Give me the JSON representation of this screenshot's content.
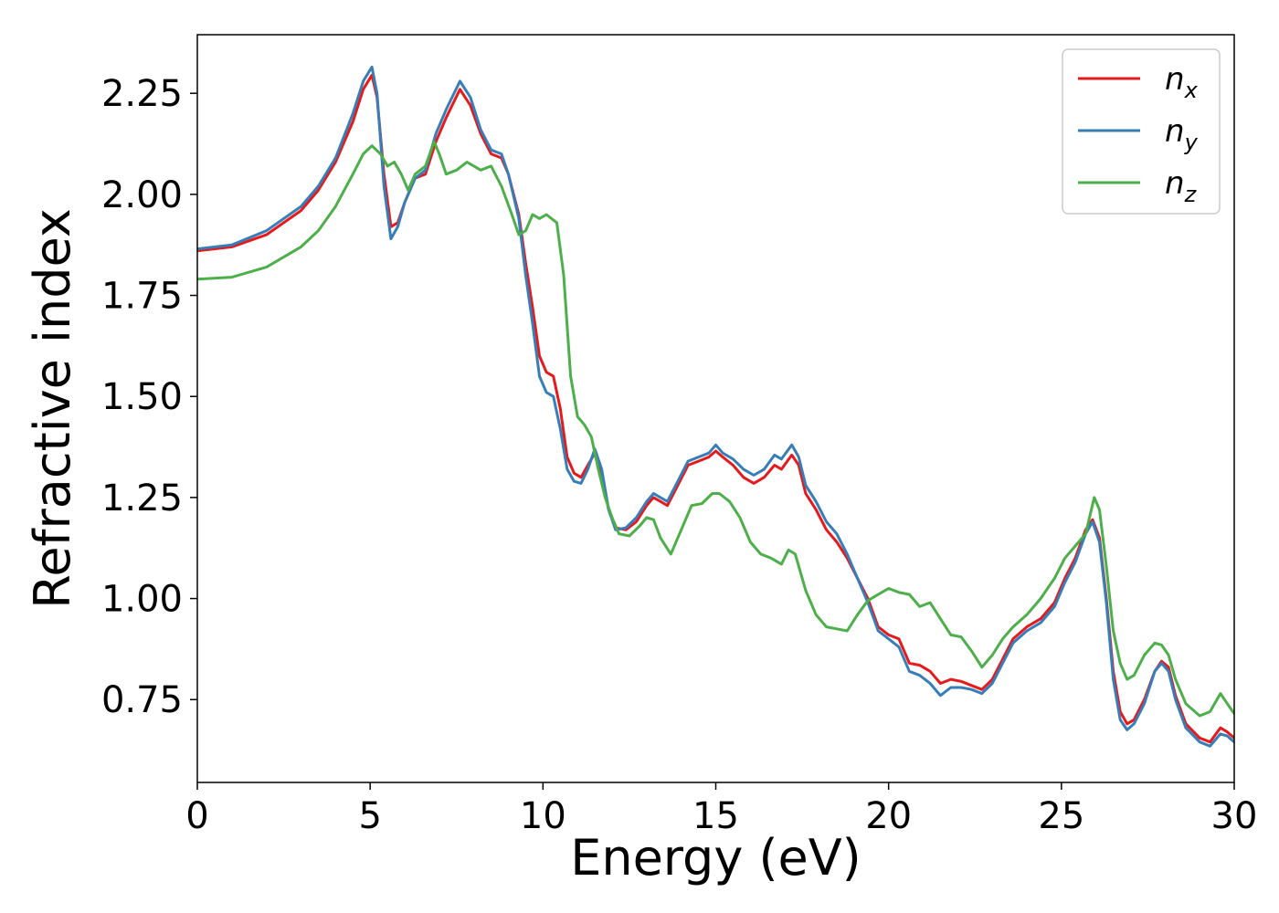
{
  "chart_data": {
    "type": "line",
    "xlabel": "Energy (eV)",
    "ylabel": "Refractive index",
    "xlim": [
      0,
      30
    ],
    "ylim": [
      0.545,
      2.395
    ],
    "xticks": [
      0,
      5,
      10,
      15,
      20,
      25,
      30
    ],
    "xtick_labels": [
      "0",
      "5",
      "10",
      "15",
      "20",
      "25",
      "30"
    ],
    "yticks": [
      0.75,
      1.0,
      1.25,
      1.5,
      1.75,
      2.0,
      2.25
    ],
    "ytick_labels": [
      "0.75",
      "1.00",
      "1.25",
      "1.50",
      "1.75",
      "2.00",
      "2.25"
    ],
    "grid": false,
    "legend_position": "top-right",
    "series": [
      {
        "name": "n",
        "subscript": "x",
        "color": "#e41a1c",
        "points": [
          [
            0,
            1.86
          ],
          [
            1,
            1.87
          ],
          [
            2,
            1.9
          ],
          [
            3,
            1.96
          ],
          [
            3.5,
            2.01
          ],
          [
            4,
            2.08
          ],
          [
            4.5,
            2.18
          ],
          [
            4.8,
            2.26
          ],
          [
            5.05,
            2.295
          ],
          [
            5.2,
            2.24
          ],
          [
            5.4,
            2.05
          ],
          [
            5.6,
            1.92
          ],
          [
            5.8,
            1.93
          ],
          [
            6.0,
            1.98
          ],
          [
            6.3,
            2.04
          ],
          [
            6.6,
            2.05
          ],
          [
            6.9,
            2.13
          ],
          [
            7.2,
            2.19
          ],
          [
            7.6,
            2.26
          ],
          [
            7.9,
            2.22
          ],
          [
            8.2,
            2.15
          ],
          [
            8.5,
            2.1
          ],
          [
            8.8,
            2.09
          ],
          [
            9.0,
            2.05
          ],
          [
            9.3,
            1.95
          ],
          [
            9.5,
            1.83
          ],
          [
            9.7,
            1.72
          ],
          [
            9.9,
            1.6
          ],
          [
            10.1,
            1.56
          ],
          [
            10.3,
            1.55
          ],
          [
            10.5,
            1.47
          ],
          [
            10.7,
            1.35
          ],
          [
            10.9,
            1.31
          ],
          [
            11.1,
            1.3
          ],
          [
            11.3,
            1.33
          ],
          [
            11.5,
            1.36
          ],
          [
            11.7,
            1.31
          ],
          [
            11.9,
            1.22
          ],
          [
            12.1,
            1.175
          ],
          [
            12.4,
            1.17
          ],
          [
            12.7,
            1.19
          ],
          [
            13.0,
            1.23
          ],
          [
            13.2,
            1.25
          ],
          [
            13.4,
            1.24
          ],
          [
            13.6,
            1.23
          ],
          [
            13.9,
            1.28
          ],
          [
            14.2,
            1.33
          ],
          [
            14.5,
            1.34
          ],
          [
            14.8,
            1.35
          ],
          [
            15.0,
            1.365
          ],
          [
            15.2,
            1.35
          ],
          [
            15.5,
            1.33
          ],
          [
            15.8,
            1.3
          ],
          [
            16.1,
            1.285
          ],
          [
            16.4,
            1.3
          ],
          [
            16.7,
            1.33
          ],
          [
            16.9,
            1.32
          ],
          [
            17.2,
            1.355
          ],
          [
            17.4,
            1.33
          ],
          [
            17.6,
            1.26
          ],
          [
            17.9,
            1.22
          ],
          [
            18.2,
            1.17
          ],
          [
            18.5,
            1.14
          ],
          [
            18.8,
            1.1
          ],
          [
            19.1,
            1.05
          ],
          [
            19.4,
            1.0
          ],
          [
            19.7,
            0.93
          ],
          [
            20.0,
            0.91
          ],
          [
            20.3,
            0.9
          ],
          [
            20.6,
            0.84
          ],
          [
            20.9,
            0.835
          ],
          [
            21.2,
            0.82
          ],
          [
            21.5,
            0.79
          ],
          [
            21.8,
            0.8
          ],
          [
            22.1,
            0.795
          ],
          [
            22.4,
            0.785
          ],
          [
            22.7,
            0.775
          ],
          [
            23.0,
            0.8
          ],
          [
            23.3,
            0.85
          ],
          [
            23.6,
            0.9
          ],
          [
            24.0,
            0.93
          ],
          [
            24.4,
            0.95
          ],
          [
            24.8,
            0.99
          ],
          [
            25.1,
            1.05
          ],
          [
            25.4,
            1.1
          ],
          [
            25.7,
            1.17
          ],
          [
            25.9,
            1.195
          ],
          [
            26.1,
            1.15
          ],
          [
            26.3,
            1.0
          ],
          [
            26.5,
            0.82
          ],
          [
            26.7,
            0.72
          ],
          [
            26.9,
            0.69
          ],
          [
            27.1,
            0.7
          ],
          [
            27.4,
            0.75
          ],
          [
            27.7,
            0.82
          ],
          [
            27.9,
            0.845
          ],
          [
            28.1,
            0.83
          ],
          [
            28.3,
            0.76
          ],
          [
            28.6,
            0.69
          ],
          [
            29.0,
            0.655
          ],
          [
            29.3,
            0.645
          ],
          [
            29.6,
            0.68
          ],
          [
            29.8,
            0.67
          ],
          [
            30.0,
            0.655
          ]
        ]
      },
      {
        "name": "n",
        "subscript": "y",
        "color": "#377eb8",
        "points": [
          [
            0,
            1.865
          ],
          [
            1,
            1.875
          ],
          [
            2,
            1.91
          ],
          [
            3,
            1.97
          ],
          [
            3.5,
            2.02
          ],
          [
            4,
            2.09
          ],
          [
            4.5,
            2.2
          ],
          [
            4.8,
            2.28
          ],
          [
            5.05,
            2.315
          ],
          [
            5.2,
            2.25
          ],
          [
            5.4,
            2.02
          ],
          [
            5.6,
            1.89
          ],
          [
            5.8,
            1.92
          ],
          [
            6.0,
            1.98
          ],
          [
            6.3,
            2.04
          ],
          [
            6.6,
            2.06
          ],
          [
            6.9,
            2.15
          ],
          [
            7.2,
            2.21
          ],
          [
            7.6,
            2.28
          ],
          [
            7.9,
            2.24
          ],
          [
            8.2,
            2.16
          ],
          [
            8.5,
            2.11
          ],
          [
            8.8,
            2.1
          ],
          [
            9.0,
            2.05
          ],
          [
            9.3,
            1.94
          ],
          [
            9.5,
            1.8
          ],
          [
            9.7,
            1.68
          ],
          [
            9.9,
            1.55
          ],
          [
            10.1,
            1.51
          ],
          [
            10.3,
            1.5
          ],
          [
            10.5,
            1.42
          ],
          [
            10.7,
            1.32
          ],
          [
            10.9,
            1.29
          ],
          [
            11.1,
            1.285
          ],
          [
            11.3,
            1.32
          ],
          [
            11.5,
            1.37
          ],
          [
            11.7,
            1.32
          ],
          [
            11.9,
            1.22
          ],
          [
            12.1,
            1.17
          ],
          [
            12.4,
            1.175
          ],
          [
            12.7,
            1.2
          ],
          [
            13.0,
            1.24
          ],
          [
            13.2,
            1.26
          ],
          [
            13.4,
            1.25
          ],
          [
            13.6,
            1.24
          ],
          [
            13.9,
            1.29
          ],
          [
            14.2,
            1.34
          ],
          [
            14.5,
            1.35
          ],
          [
            14.8,
            1.36
          ],
          [
            15.0,
            1.38
          ],
          [
            15.2,
            1.36
          ],
          [
            15.5,
            1.345
          ],
          [
            15.8,
            1.32
          ],
          [
            16.1,
            1.305
          ],
          [
            16.4,
            1.32
          ],
          [
            16.7,
            1.355
          ],
          [
            16.9,
            1.345
          ],
          [
            17.2,
            1.38
          ],
          [
            17.4,
            1.35
          ],
          [
            17.6,
            1.28
          ],
          [
            17.9,
            1.24
          ],
          [
            18.2,
            1.19
          ],
          [
            18.5,
            1.16
          ],
          [
            18.8,
            1.11
          ],
          [
            19.1,
            1.05
          ],
          [
            19.4,
            0.99
          ],
          [
            19.7,
            0.92
          ],
          [
            20.0,
            0.9
          ],
          [
            20.3,
            0.88
          ],
          [
            20.6,
            0.82
          ],
          [
            20.9,
            0.81
          ],
          [
            21.2,
            0.79
          ],
          [
            21.5,
            0.76
          ],
          [
            21.8,
            0.78
          ],
          [
            22.1,
            0.78
          ],
          [
            22.4,
            0.775
          ],
          [
            22.7,
            0.765
          ],
          [
            23.0,
            0.79
          ],
          [
            23.3,
            0.84
          ],
          [
            23.6,
            0.89
          ],
          [
            24.0,
            0.92
          ],
          [
            24.4,
            0.94
          ],
          [
            24.8,
            0.98
          ],
          [
            25.1,
            1.04
          ],
          [
            25.4,
            1.09
          ],
          [
            25.7,
            1.16
          ],
          [
            25.9,
            1.19
          ],
          [
            26.1,
            1.14
          ],
          [
            26.3,
            0.99
          ],
          [
            26.5,
            0.8
          ],
          [
            26.7,
            0.7
          ],
          [
            26.9,
            0.675
          ],
          [
            27.1,
            0.69
          ],
          [
            27.4,
            0.74
          ],
          [
            27.7,
            0.82
          ],
          [
            27.9,
            0.84
          ],
          [
            28.1,
            0.82
          ],
          [
            28.3,
            0.75
          ],
          [
            28.6,
            0.68
          ],
          [
            29.0,
            0.645
          ],
          [
            29.3,
            0.635
          ],
          [
            29.6,
            0.665
          ],
          [
            29.8,
            0.66
          ],
          [
            30.0,
            0.645
          ]
        ]
      },
      {
        "name": "n",
        "subscript": "z",
        "color": "#4daf4a",
        "points": [
          [
            0,
            1.79
          ],
          [
            1,
            1.795
          ],
          [
            2,
            1.82
          ],
          [
            3,
            1.87
          ],
          [
            3.5,
            1.91
          ],
          [
            4,
            1.97
          ],
          [
            4.5,
            2.05
          ],
          [
            4.8,
            2.1
          ],
          [
            5.05,
            2.12
          ],
          [
            5.3,
            2.1
          ],
          [
            5.5,
            2.07
          ],
          [
            5.7,
            2.08
          ],
          [
            5.9,
            2.05
          ],
          [
            6.1,
            2.01
          ],
          [
            6.3,
            2.05
          ],
          [
            6.6,
            2.07
          ],
          [
            6.85,
            2.13
          ],
          [
            7.0,
            2.1
          ],
          [
            7.2,
            2.05
          ],
          [
            7.5,
            2.06
          ],
          [
            7.8,
            2.08
          ],
          [
            8.0,
            2.07
          ],
          [
            8.2,
            2.06
          ],
          [
            8.5,
            2.07
          ],
          [
            8.8,
            2.02
          ],
          [
            9.1,
            1.95
          ],
          [
            9.3,
            1.9
          ],
          [
            9.5,
            1.91
          ],
          [
            9.7,
            1.95
          ],
          [
            9.9,
            1.94
          ],
          [
            10.1,
            1.95
          ],
          [
            10.4,
            1.93
          ],
          [
            10.6,
            1.8
          ],
          [
            10.8,
            1.55
          ],
          [
            11.0,
            1.45
          ],
          [
            11.2,
            1.43
          ],
          [
            11.4,
            1.4
          ],
          [
            11.6,
            1.32
          ],
          [
            11.8,
            1.25
          ],
          [
            12.0,
            1.2
          ],
          [
            12.2,
            1.16
          ],
          [
            12.5,
            1.155
          ],
          [
            12.8,
            1.18
          ],
          [
            13.0,
            1.2
          ],
          [
            13.2,
            1.195
          ],
          [
            13.4,
            1.15
          ],
          [
            13.7,
            1.11
          ],
          [
            14.0,
            1.17
          ],
          [
            14.3,
            1.23
          ],
          [
            14.6,
            1.235
          ],
          [
            14.9,
            1.26
          ],
          [
            15.1,
            1.26
          ],
          [
            15.4,
            1.24
          ],
          [
            15.7,
            1.2
          ],
          [
            16.0,
            1.14
          ],
          [
            16.3,
            1.11
          ],
          [
            16.6,
            1.1
          ],
          [
            16.9,
            1.085
          ],
          [
            17.1,
            1.12
          ],
          [
            17.3,
            1.11
          ],
          [
            17.6,
            1.02
          ],
          [
            17.9,
            0.96
          ],
          [
            18.2,
            0.93
          ],
          [
            18.5,
            0.925
          ],
          [
            18.8,
            0.92
          ],
          [
            19.1,
            0.96
          ],
          [
            19.4,
            0.995
          ],
          [
            19.7,
            1.01
          ],
          [
            20.0,
            1.025
          ],
          [
            20.3,
            1.015
          ],
          [
            20.6,
            1.01
          ],
          [
            20.9,
            0.98
          ],
          [
            21.2,
            0.99
          ],
          [
            21.5,
            0.95
          ],
          [
            21.8,
            0.91
          ],
          [
            22.1,
            0.905
          ],
          [
            22.4,
            0.87
          ],
          [
            22.7,
            0.83
          ],
          [
            23.0,
            0.86
          ],
          [
            23.3,
            0.9
          ],
          [
            23.6,
            0.93
          ],
          [
            24.0,
            0.96
          ],
          [
            24.4,
            1.0
          ],
          [
            24.8,
            1.05
          ],
          [
            25.1,
            1.1
          ],
          [
            25.4,
            1.13
          ],
          [
            25.7,
            1.16
          ],
          [
            25.95,
            1.25
          ],
          [
            26.1,
            1.22
          ],
          [
            26.3,
            1.08
          ],
          [
            26.5,
            0.92
          ],
          [
            26.7,
            0.84
          ],
          [
            26.9,
            0.8
          ],
          [
            27.1,
            0.81
          ],
          [
            27.4,
            0.86
          ],
          [
            27.7,
            0.89
          ],
          [
            27.9,
            0.885
          ],
          [
            28.1,
            0.86
          ],
          [
            28.3,
            0.8
          ],
          [
            28.6,
            0.74
          ],
          [
            29.0,
            0.71
          ],
          [
            29.3,
            0.72
          ],
          [
            29.6,
            0.765
          ],
          [
            29.8,
            0.74
          ],
          [
            30.0,
            0.715
          ]
        ]
      }
    ]
  }
}
